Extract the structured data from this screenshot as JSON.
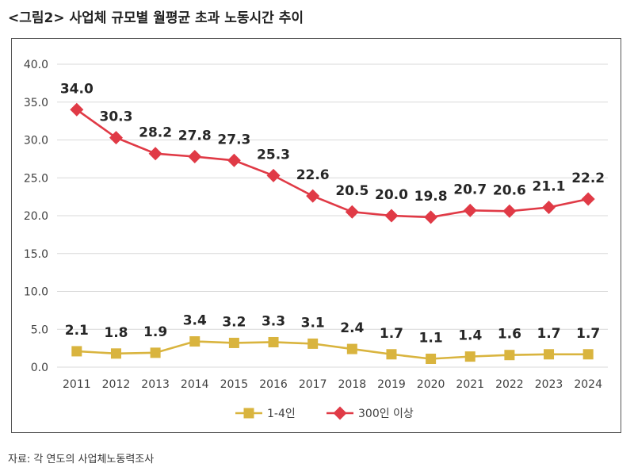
{
  "title": "<그림2> 사업체 규모별 월평균 초과 노동시간 추이",
  "source": "자료: 각 연도의 사업체노동력조사",
  "colors": {
    "series1": "#D9B43E",
    "series2": "#E03A46",
    "grid": "#D9D9D9",
    "axis_text": "#404040",
    "label_text": "#262626"
  },
  "chart_data": {
    "type": "line",
    "title": "<그림2> 사업체 규모별 월평균 초과 노동시간 추이",
    "xlabel": "",
    "ylabel": "",
    "ylim": [
      0,
      40
    ],
    "yticks": [
      "0.0",
      "5.0",
      "10.0",
      "15.0",
      "20.0",
      "25.0",
      "30.0",
      "35.0",
      "40.0"
    ],
    "x": [
      "2011",
      "2012",
      "2013",
      "2014",
      "2015",
      "2016",
      "2017",
      "2018",
      "2019",
      "2020",
      "2021",
      "2022",
      "2023",
      "2024"
    ],
    "grid": true,
    "legend_position": "bottom",
    "series": [
      {
        "name": "1-4인",
        "marker": "square",
        "color": "#D9B43E",
        "values": [
          2.1,
          1.8,
          1.9,
          3.4,
          3.2,
          3.3,
          3.1,
          2.4,
          1.7,
          1.1,
          1.4,
          1.6,
          1.7,
          1.7
        ],
        "labels": [
          "2.1",
          "1.8",
          "1.9",
          "3.4",
          "3.2",
          "3.3",
          "3.1",
          "2.4",
          "1.7",
          "1.1",
          "1.4",
          "1.6",
          "1.7",
          "1.7"
        ]
      },
      {
        "name": "300인 이상",
        "marker": "diamond",
        "color": "#E03A46",
        "values": [
          34.0,
          30.3,
          28.2,
          27.8,
          27.3,
          25.3,
          22.6,
          20.5,
          20.0,
          19.8,
          20.7,
          20.6,
          21.1,
          22.2
        ],
        "labels": [
          "34.0",
          "30.3",
          "28.2",
          "27.8",
          "27.3",
          "25.3",
          "22.6",
          "20.5",
          "20.0",
          "19.8",
          "20.7",
          "20.6",
          "21.1",
          "22.2"
        ]
      }
    ]
  }
}
